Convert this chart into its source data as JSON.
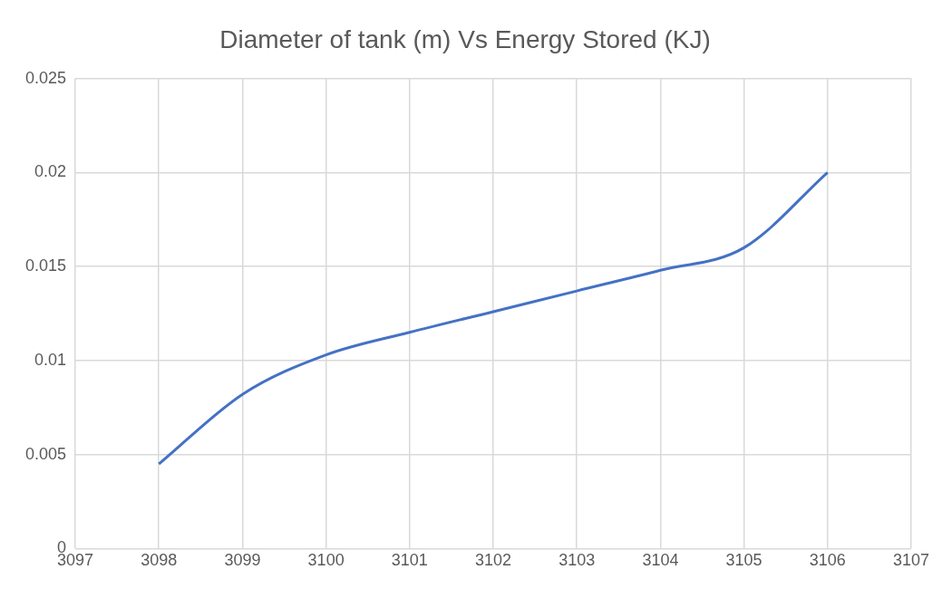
{
  "chart_data": {
    "type": "line",
    "title": "Diameter of tank (m) Vs Energy Stored (KJ)",
    "x": [
      3098,
      3099,
      3100,
      3101,
      3102,
      3103,
      3104,
      3105,
      3106
    ],
    "series": [
      {
        "color": "#4472c4",
        "values": [
          0.0045,
          0.0082,
          0.0103,
          0.0115,
          0.0126,
          0.0137,
          0.0148,
          0.016,
          0.02
        ]
      }
    ],
    "xlim": [
      3097,
      3107
    ],
    "xticks": [
      3097,
      3098,
      3099,
      3100,
      3101,
      3102,
      3103,
      3104,
      3105,
      3106,
      3107
    ],
    "ylim": [
      0,
      0.025
    ],
    "yticks": [
      0,
      0.005,
      0.01,
      0.015,
      0.02,
      0.025
    ],
    "grid": true,
    "legend": false,
    "marker": "none",
    "line_style": "solid"
  }
}
